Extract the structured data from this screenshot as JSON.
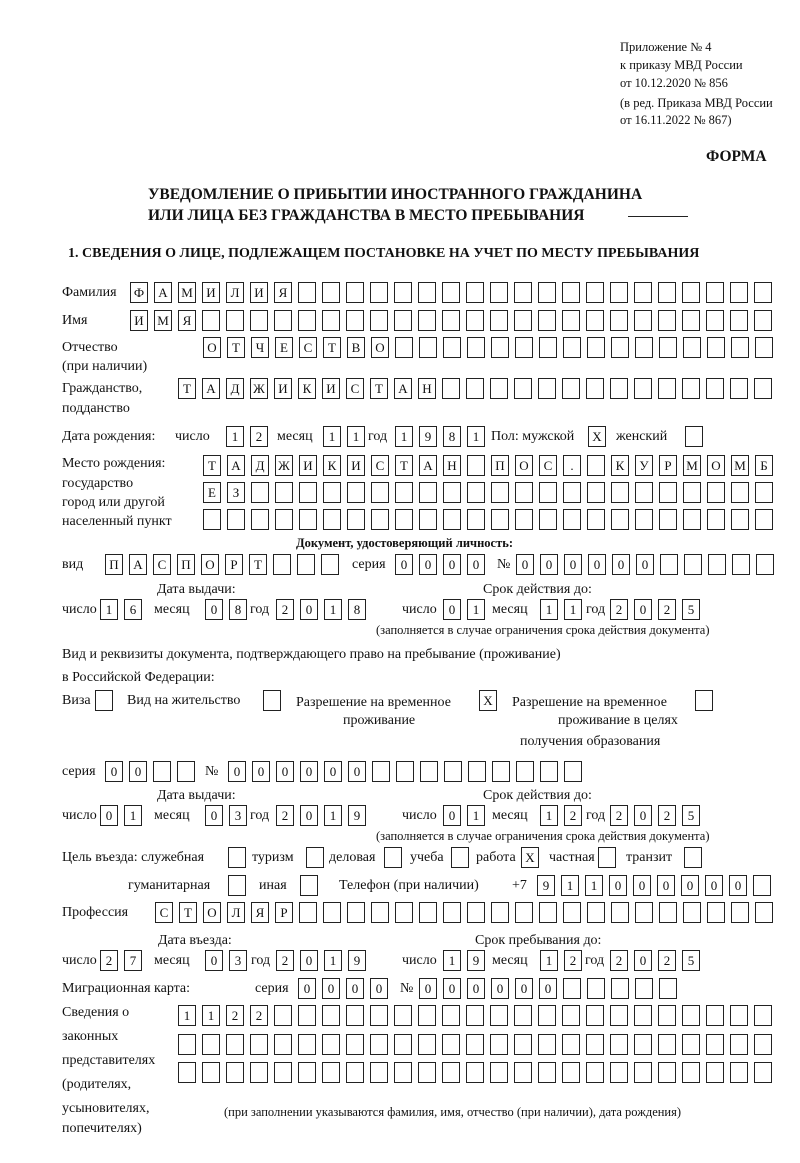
{
  "header": {
    "appendix": "Приложение № 4",
    "order": "к приказу МВД России",
    "order_date": "от 10.12.2020 № 856",
    "revision1": "(в ред. Приказа МВД России",
    "revision2": "от 16.11.2022 № 867)",
    "form_label": "ФОРМА",
    "title1": "УВЕДОМЛЕНИЕ О ПРИБЫТИИ ИНОСТРАННОГО ГРАЖДАНИНА",
    "title2": "ИЛИ ЛИЦА БЕЗ ГРАЖДАНСТВА В МЕСТО ПРЕБЫВАНИЯ",
    "section1": "1. СВЕДЕНИЯ О ЛИЦЕ, ПОДЛЕЖАЩЕМ ПОСТАНОВКЕ НА УЧЕТ ПО МЕСТУ ПРЕБЫВАНИЯ"
  },
  "labels": {
    "surname": "Фамилия",
    "name": "Имя",
    "patronymic": "Отчество",
    "patronymic_note": "(при наличии)",
    "citizenship1": "Гражданство,",
    "citizenship2": "подданство",
    "birth_date": "Дата рождения:",
    "day": "число",
    "month": "месяц",
    "year": "год",
    "sex": "Пол: мужской",
    "female": "женский",
    "birthplace1": "Место рождения:",
    "birthplace2": "государство",
    "birthplace3": "город или другой",
    "birthplace4": "населенный пункт",
    "id_doc": "Документ, удостоверяющий личность:",
    "kind": "вид",
    "series": "серия",
    "number": "№",
    "issue_date": "Дата выдачи:",
    "valid_until": "Срок действия до:",
    "validity_note": "(заполняется в случае ограничения срока действия документа)",
    "stay_doc1": "Вид и реквизиты документа, подтверждающего право на пребывание (проживание)",
    "stay_doc2": "в Российской Федерации:",
    "visa": "Виза",
    "residence": "Вид на жительство",
    "temp_permit1": "Разрешение на временное",
    "temp_permit2": "проживание",
    "edu_permit1": "Разрешение на временное",
    "edu_permit2": "проживание в целях",
    "edu_permit3": "получения образования",
    "purpose": "Цель въезда: служебная",
    "tourism": "туризм",
    "business": "деловая",
    "study": "учеба",
    "work": "работа",
    "private": "частная",
    "transit": "транзит",
    "humanitarian": "гуманитарная",
    "other": "иная",
    "phone": "Телефон (при наличии)",
    "phone_prefix": "+7",
    "profession": "Профессия",
    "entry_date": "Дата въезда:",
    "stay_until": "Срок пребывания до:",
    "migration_card": "Миграционная карта:",
    "rep1": "Сведения о",
    "rep2": "законных",
    "rep3": "представителях",
    "rep4": "(родителях,",
    "rep5": "усыновителях,",
    "rep6": "попечителях)",
    "rep_note": "(при заполнении указываются фамилия, имя, отчество (при наличии), дата рождения)"
  },
  "fields": {
    "surname": "ФАМИЛИЯ",
    "name": "ИМЯ",
    "patronymic": "ОТЧЕСТВО",
    "citizenship": "ТАДЖИКИСТАН",
    "birth_day": "12",
    "birth_month": "11",
    "birth_year": "1981",
    "sex_male": "X",
    "sex_female": "",
    "birthplace_1": "ТАДЖИКИСТАН ПОС. КУРМОМБ",
    "birthplace_2": "ЕЗ",
    "birthplace_3": "",
    "doc_kind": "ПАСПОРТ",
    "doc_series": "0000",
    "doc_number": "000000",
    "doc_issue_day": "16",
    "doc_issue_month": "08",
    "doc_issue_year": "2018",
    "doc_valid_day": "01",
    "doc_valid_month": "11",
    "doc_valid_year": "2025",
    "visa": "",
    "residence": "",
    "temp_permit": "X",
    "edu_permit": "",
    "stay_series": "00",
    "stay_number": "000000",
    "stay_issue_day": "01",
    "stay_issue_month": "03",
    "stay_issue_year": "2019",
    "stay_valid_day": "01",
    "stay_valid_month": "12",
    "stay_valid_year": "2025",
    "purpose_service": "",
    "purpose_tourism": "",
    "purpose_business": "",
    "purpose_study": "",
    "purpose_work": "X",
    "purpose_private": "",
    "purpose_transit": "",
    "purpose_humanitarian": "",
    "purpose_other": "",
    "phone": "911000000",
    "profession": "СТОЛЯР",
    "entry_day": "27",
    "entry_month": "03",
    "entry_year": "2019",
    "stay_until_day": "19",
    "stay_until_month": "12",
    "stay_until_year": "2025",
    "mc_series": "0000",
    "mc_number": "000000",
    "rep_1": "1122",
    "rep_2": "",
    "rep_3": ""
  }
}
